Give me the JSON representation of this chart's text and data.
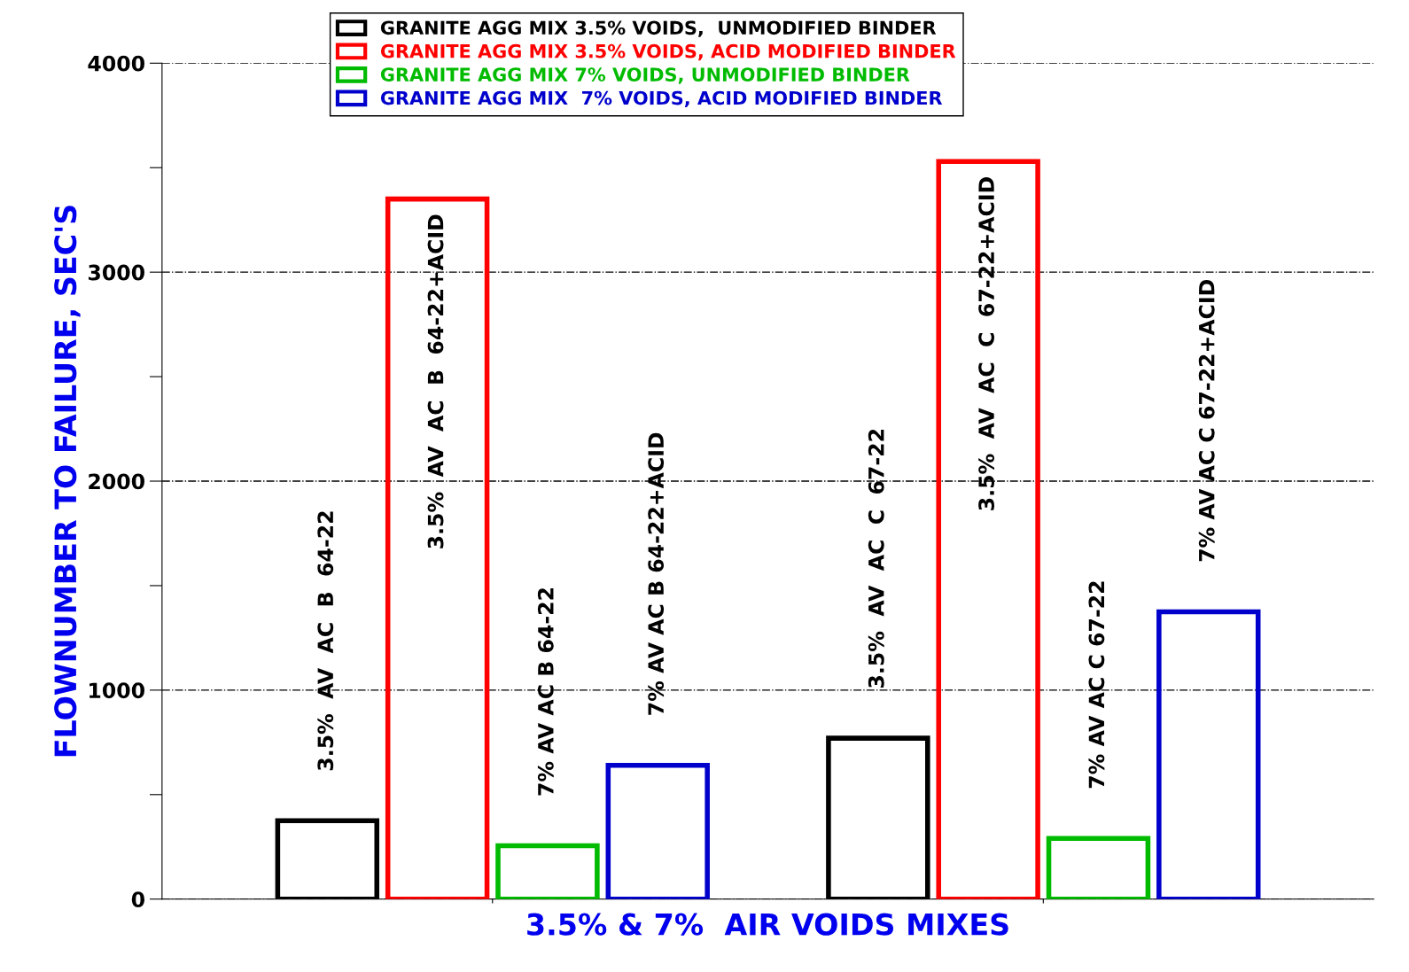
{
  "chart_data": {
    "type": "bar",
    "xlabel": "3.5% & 7%  AIR VOIDS MIXES",
    "ylabel": "FLOWNUMBER TO FAILURE, SEC'S",
    "categories": [
      null,
      null
    ],
    "series": [
      {
        "name": "GRANITE AGG MIX 3.5% VOIDS,  UNMODIFIED BINDER",
        "color": "#000000",
        "values": [
          375,
          770
        ]
      },
      {
        "name": "GRANITE AGG MIX 3.5% VOIDS, ACID MODIFIED BINDER",
        "color": "#ff0000",
        "values": [
          3350,
          3530
        ]
      },
      {
        "name": "GRANITE AGG MIX 7% VOIDS, UNMODIFIED BINDER",
        "color": "#00bb00",
        "values": [
          255,
          290
        ]
      },
      {
        "name": "GRANITE AGG MIX  7% VOIDS, ACID MODIFIED BINDER",
        "color": "#0000cc",
        "values": [
          640,
          1375
        ]
      }
    ],
    "annotations": [
      {
        "text": "3.5%  AV  AC  B  64-22",
        "y": 375
      },
      {
        "text": "3.5%  AV  AC  B  64-22+ACID",
        "y": 3350
      },
      {
        "text": "7% AV AC B 64-22",
        "y": 255
      },
      {
        "text": "7% AV AC B 64-22+ACID",
        "y": 640
      },
      {
        "text": "3.5%  AV  AC  C  67-22",
        "y": 770
      },
      {
        "text": "3.5%  AV  AC  C  67-22+ACID",
        "y": 3530
      },
      {
        "text": "7% AV AC C 67-22",
        "y": 290
      },
      {
        "text": "7% AV AC C 67-22+ACID",
        "y": 1375
      }
    ],
    "ylim": [
      0,
      4000
    ],
    "yticks": [
      0,
      {
        "value": 500,
        "label": null
      },
      1000,
      {
        "value": 1500,
        "label": null
      },
      2000,
      {
        "value": 2500,
        "label": null
      },
      3000,
      {
        "value": 3500,
        "label": null
      },
      4000
    ],
    "grid": "y",
    "legend": "top"
  }
}
